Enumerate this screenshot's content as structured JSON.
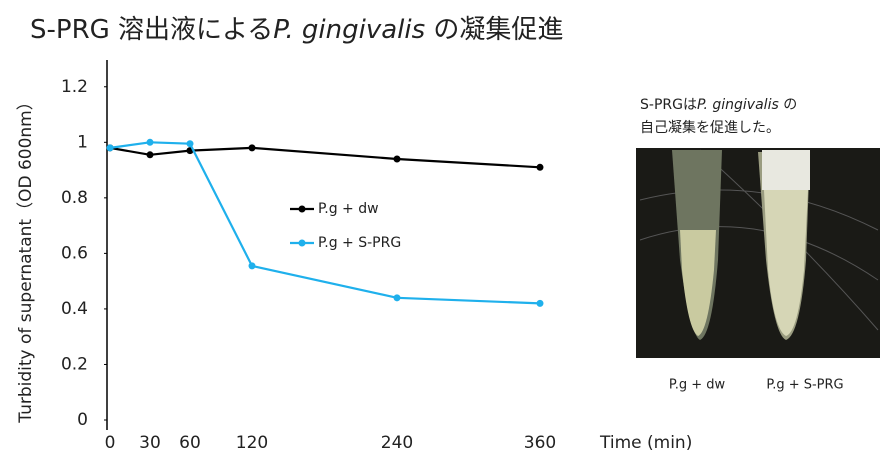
{
  "chart_data": {
    "type": "line",
    "title": [
      "S-PRG 溶出液による",
      "P. gingivalis",
      " の凝集促進"
    ],
    "x_label": "Time (min)",
    "y_label": "Turbidity of supernatant（OD 600nm）",
    "categories": [
      "0",
      "30",
      "60",
      "120",
      "240",
      "360"
    ],
    "series": [
      {
        "name": "P.g + dw",
        "color": "#000000",
        "values": [
          0.98,
          0.955,
          0.97,
          0.98,
          0.94,
          0.91
        ]
      },
      {
        "name": "P.g + S-PRG",
        "color": "#1fb0ec",
        "values": [
          0.98,
          1.0,
          0.995,
          0.555,
          0.44,
          0.42
        ]
      }
    ],
    "ylim": [
      0,
      1.3
    ],
    "yticks": [
      0,
      0.2,
      0.4,
      0.6,
      0.8,
      1,
      1.2
    ],
    "grid": false,
    "annotation": [
      [
        "S-PRGは",
        "P. gingivalis",
        " の"
      ],
      [
        "自己凝集を促進した。"
      ]
    ],
    "photo_labels": [
      "P.g + dw",
      "P.g + S-PRG"
    ]
  }
}
